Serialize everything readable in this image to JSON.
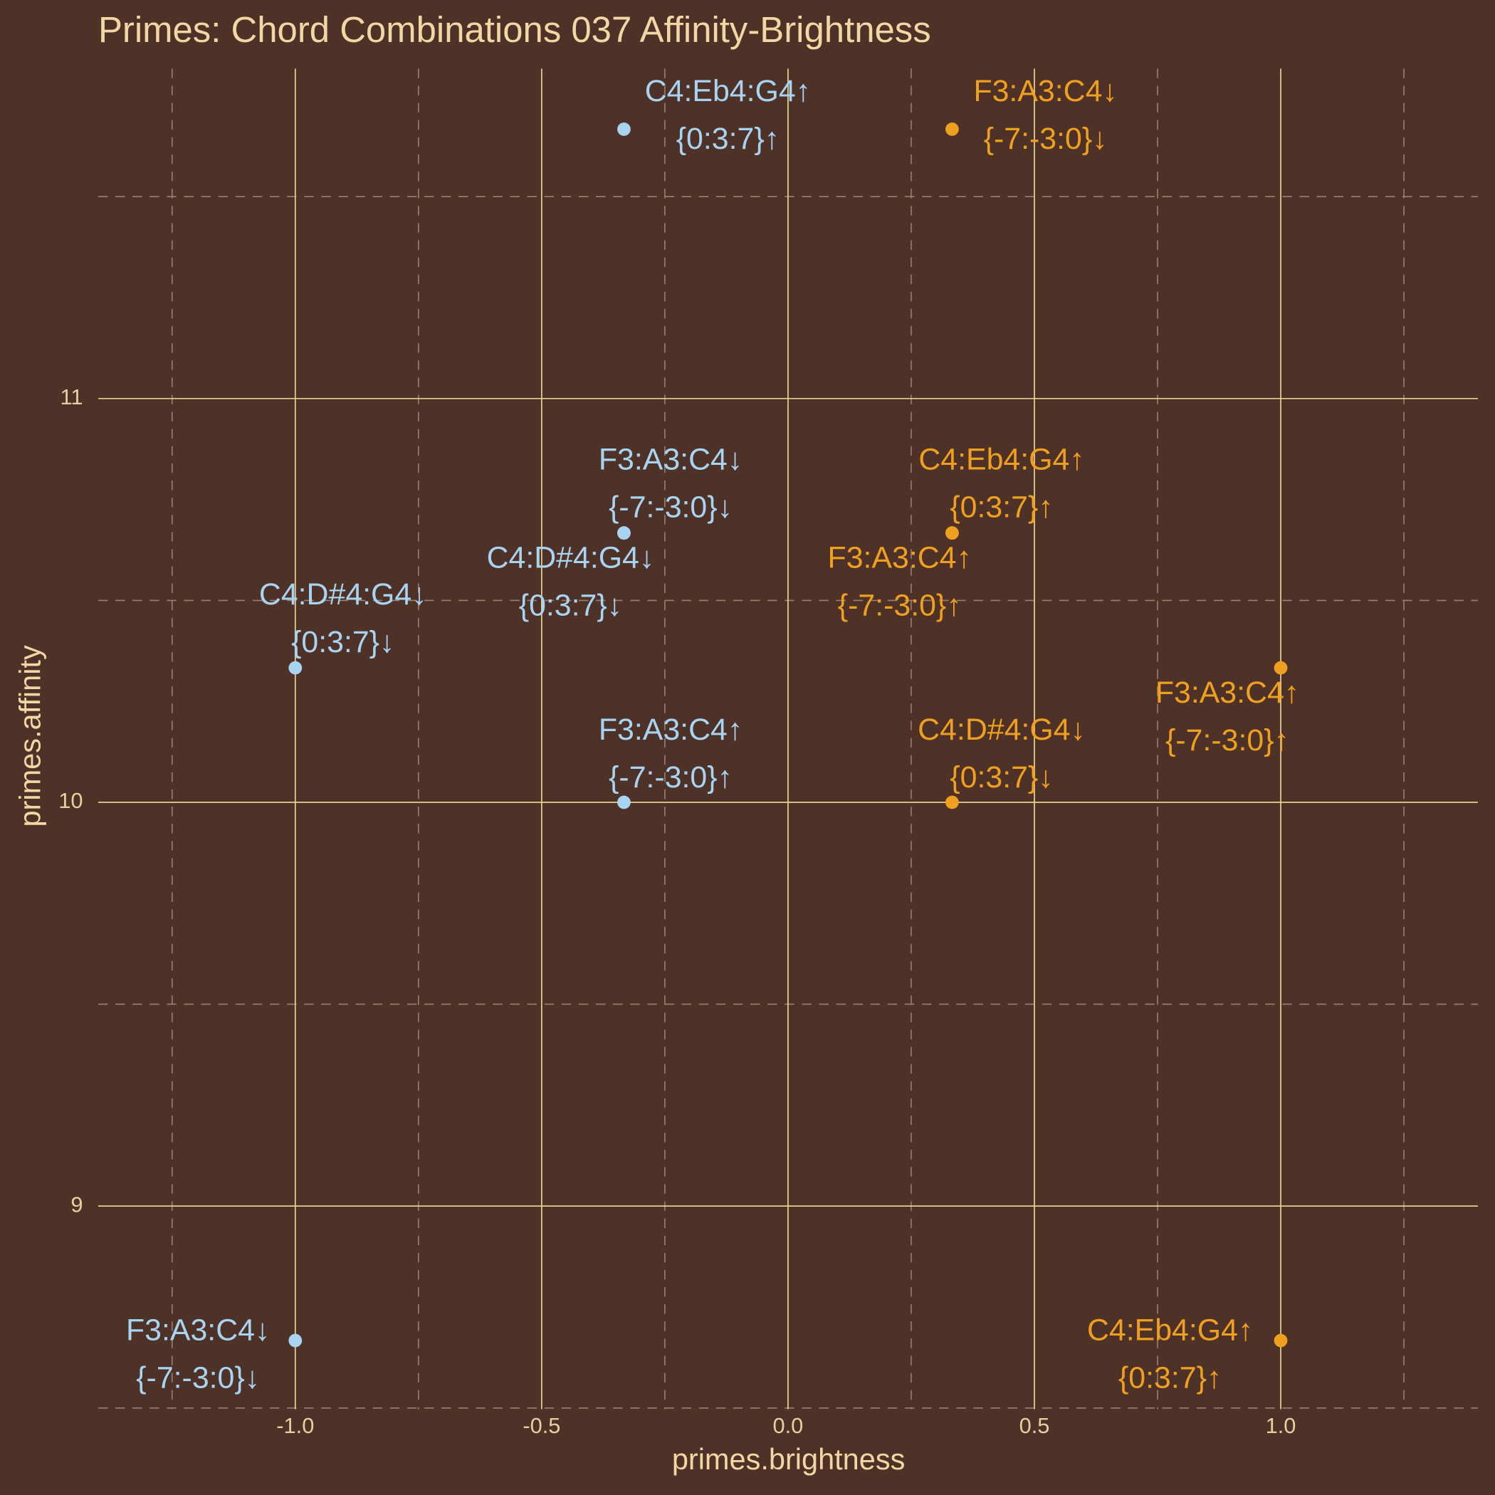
{
  "chart_data": {
    "type": "scatter",
    "title": "Primes: Chord Combinations 037 Affinity-Brightness",
    "xlabel": "primes.brightness",
    "ylabel": "primes.affinity",
    "xlim": [
      -1.4,
      1.4
    ],
    "ylim": [
      8.497,
      11.817
    ],
    "xticks": [
      {
        "value": -1,
        "label": "-1.0"
      },
      -0.5,
      {
        "value": 0,
        "label": "0.0"
      },
      0.5,
      {
        "value": 1,
        "label": "1.0"
      }
    ],
    "yticks": [
      9,
      10,
      11
    ],
    "grid": true,
    "series": [
      {
        "color": "#a8d4f2",
        "x": [
          -0.333,
          -0.333,
          -0.333,
          -1,
          -0.333,
          -1
        ],
        "values": [
          11.667,
          10.667,
          10.667,
          10.333,
          10,
          8.667
        ],
        "labels": [
          [
            "C4:Eb4:G4↑",
            "{0:3:7}↑"
          ],
          [
            "F3:A3:C4↓",
            "{-7:-3:0}↓"
          ],
          [
            "C4:D#4:G4↓",
            "{0:3:7}↓"
          ],
          [
            "C4:D#4:G4↓",
            "{0:3:7}↓"
          ],
          [
            "F3:A3:C4↑",
            "{-7:-3:0}↑"
          ],
          [
            "F3:A3:C4↓",
            "{-7:-3:0}↓"
          ]
        ]
      },
      {
        "color": "#f0a020",
        "x": [
          0.333,
          0.333,
          0.333,
          1,
          0.333,
          1
        ],
        "values": [
          11.667,
          10.667,
          10.667,
          10.333,
          10,
          8.667
        ],
        "labels": [
          [
            "F3:A3:C4↓",
            "{-7:-3:0}↓"
          ],
          [
            "C4:Eb4:G4↑",
            "{0:3:7}↑"
          ],
          [
            "F3:A3:C4↑",
            "{-7:-3:0}↑"
          ],
          [
            "F3:A3:C4↑",
            "{-7:-3:0}↑"
          ],
          [
            "C4:D#4:G4↓",
            "{0:3:7}↓"
          ],
          [
            "C4:Eb4:G4↑",
            "{0:3:7}↑"
          ]
        ]
      }
    ]
  }
}
